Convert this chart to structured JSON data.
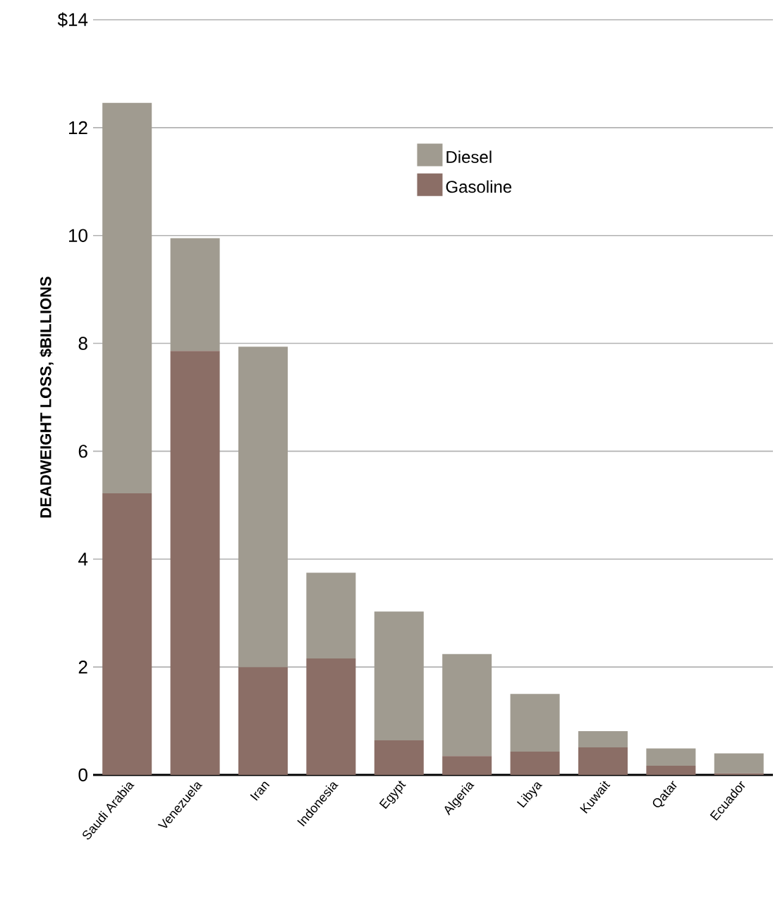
{
  "chart_data": {
    "type": "bar",
    "stacked": true,
    "ylabel": "DEADWEIGHT LOSS, $BILLIONS",
    "categories": [
      "Saudi Arabia",
      "Venezuela",
      "Iran",
      "Indonesia",
      "Egypt",
      "Algeria",
      "Libya",
      "Kuwait",
      "Qatar",
      "Ecuador"
    ],
    "series": [
      {
        "name": "Gasoline",
        "color": "#8b6e66",
        "values": [
          5.22,
          7.86,
          2.0,
          2.16,
          0.64,
          0.35,
          0.43,
          0.51,
          0.17,
          0.03
        ]
      },
      {
        "name": "Diesel",
        "color": "#a09b90",
        "values": [
          7.24,
          2.09,
          5.94,
          1.59,
          2.39,
          1.89,
          1.07,
          0.3,
          0.32,
          0.37
        ]
      }
    ],
    "ylim": [
      0,
      14
    ],
    "yticks": [
      0,
      2,
      4,
      6,
      8,
      10,
      12,
      {
        "value": 14,
        "label": "$14"
      }
    ],
    "grid": "y",
    "legend": "top right"
  }
}
